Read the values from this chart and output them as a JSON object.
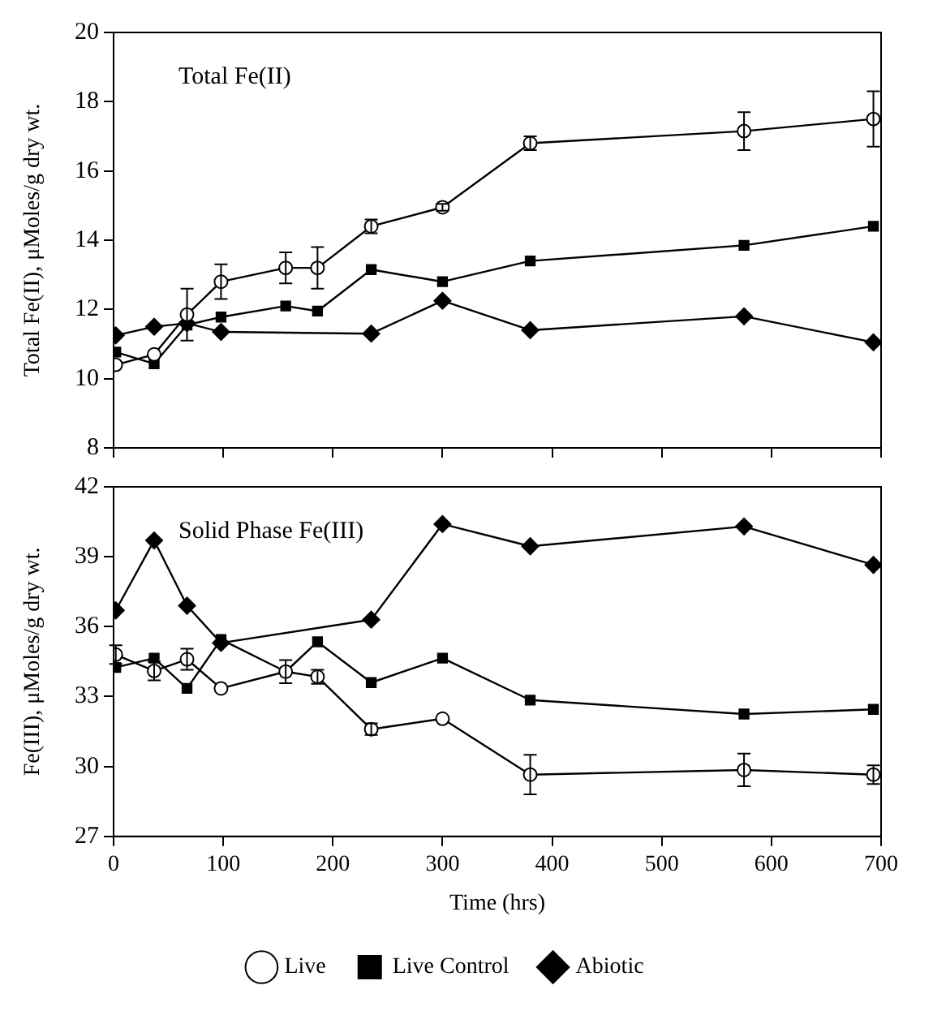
{
  "chart_data": [
    {
      "type": "line",
      "annotations": [
        "Total Fe(II)"
      ],
      "ylabel": "Total Fe(II), μMoles/g dry wt.",
      "xlim": [
        0,
        700
      ],
      "xticks": [
        0,
        100,
        200,
        300,
        400,
        500,
        600,
        700
      ],
      "ylim": [
        8,
        20
      ],
      "yticks": [
        8,
        10,
        12,
        14,
        16,
        18,
        20
      ],
      "tick_labels": "y",
      "grid": false,
      "legend": false,
      "line_style": "solid",
      "series": [
        {
          "color": "#000000",
          "marker": "circle",
          "x": [
            2,
            37,
            67,
            98,
            157,
            186,
            235,
            300,
            380,
            575,
            693
          ],
          "values": [
            10.4,
            10.7,
            11.85,
            12.8,
            13.2,
            13.2,
            14.4,
            14.95,
            16.8,
            17.15,
            17.5
          ],
          "errors": [
            null,
            null,
            0.75,
            0.5,
            0.45,
            0.6,
            0.2,
            0.1,
            0.2,
            0.55,
            0.8
          ]
        },
        {
          "color": "#000000",
          "marker": "square",
          "x": [
            2,
            37,
            67,
            98,
            157,
            186,
            235,
            300,
            380,
            575,
            693
          ],
          "values": [
            10.77,
            10.43,
            11.55,
            11.78,
            12.1,
            11.95,
            13.15,
            12.8,
            13.4,
            13.85,
            14.4
          ]
        },
        {
          "color": "#000000",
          "marker": "diamond",
          "x": [
            2,
            37,
            67,
            98,
            235,
            300,
            380,
            575,
            693
          ],
          "values": [
            11.25,
            11.5,
            11.6,
            11.35,
            11.3,
            12.25,
            11.4,
            11.8,
            11.05
          ]
        }
      ]
    },
    {
      "type": "line",
      "annotations": [
        "Solid Phase Fe(III)"
      ],
      "ylabel": "Fe(III), μMoles/g dry wt.",
      "xlabel": "Time (hrs)",
      "xlim": [
        0,
        700
      ],
      "xticks": [
        0,
        100,
        200,
        300,
        400,
        500,
        600,
        700
      ],
      "ylim": [
        27,
        42
      ],
      "yticks": [
        27,
        30,
        33,
        36,
        39,
        42
      ],
      "grid": false,
      "legend": "bottom",
      "line_style": "solid",
      "series": [
        {
          "name": "Live",
          "color": "#000000",
          "marker": "circle",
          "x": [
            2,
            37,
            67,
            98,
            157,
            186,
            235,
            300,
            380,
            575,
            693
          ],
          "values": [
            34.8,
            34.1,
            34.6,
            33.35,
            34.07,
            33.85,
            31.6,
            32.05,
            29.65,
            29.85,
            29.65
          ],
          "errors": [
            0.4,
            0.4,
            0.45,
            null,
            0.5,
            0.3,
            0.25,
            null,
            0.85,
            0.7,
            0.4
          ]
        },
        {
          "name": "Live Control",
          "color": "#000000",
          "marker": "square",
          "x": [
            2,
            37,
            67,
            98,
            157,
            186,
            235,
            300,
            380,
            575,
            693
          ],
          "values": [
            34.25,
            34.65,
            33.35,
            35.45,
            34.07,
            35.35,
            33.6,
            34.65,
            32.85,
            32.25,
            32.45
          ]
        },
        {
          "name": "Abiotic",
          "color": "#000000",
          "marker": "diamond",
          "x": [
            2,
            37,
            67,
            98,
            235,
            300,
            380,
            575,
            693
          ],
          "values": [
            36.7,
            39.7,
            36.9,
            35.3,
            36.3,
            40.4,
            39.45,
            40.3,
            38.65
          ]
        }
      ]
    }
  ]
}
